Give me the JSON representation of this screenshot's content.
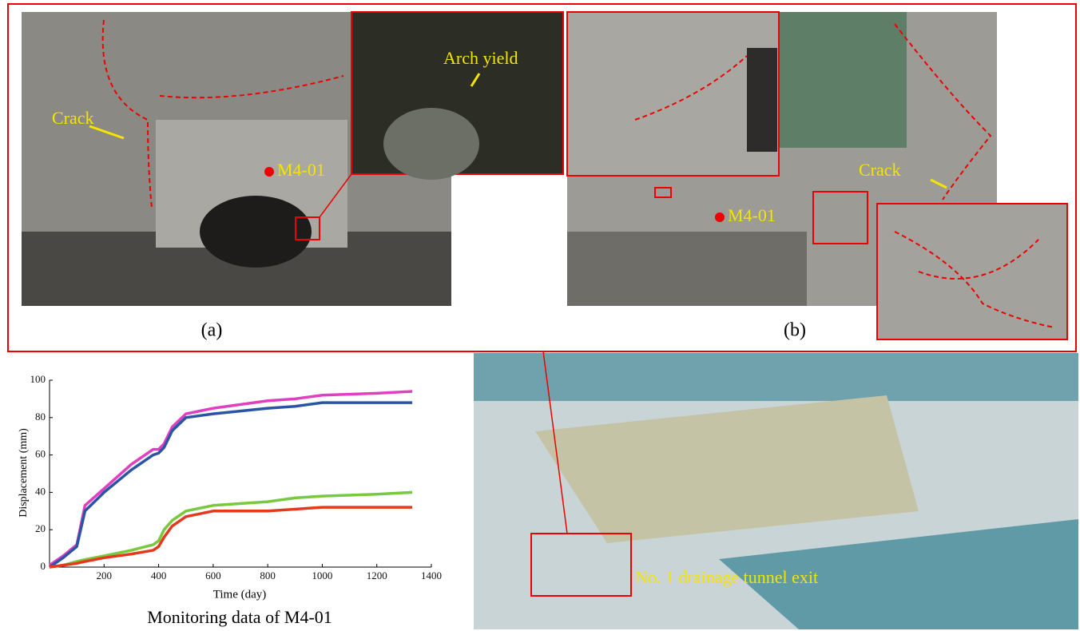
{
  "chart_data": {
    "type": "line",
    "title": "Monitoring data of M4-01",
    "x_label": "Time (day)",
    "y_label": "Displacement (mm)",
    "x": [
      0,
      50,
      100,
      130,
      200,
      300,
      380,
      400,
      420,
      450,
      500,
      600,
      800,
      900,
      1000,
      1200,
      1330
    ],
    "series": [
      {
        "color": "#e040c0",
        "values": [
          1,
          6,
          12,
          33,
          42,
          55,
          63,
          63,
          66,
          75,
          82,
          85,
          89,
          90,
          92,
          93,
          94
        ]
      },
      {
        "color": "#2a55a5",
        "values": [
          0,
          5,
          11,
          30,
          40,
          52,
          60,
          61,
          64,
          73,
          80,
          82,
          85,
          86,
          88,
          88,
          88
        ]
      },
      {
        "color": "#78c840",
        "values": [
          0,
          1,
          3,
          4,
          6,
          9,
          12,
          14,
          20,
          25,
          30,
          33,
          35,
          37,
          38,
          39,
          40
        ]
      },
      {
        "color": "#e5391f",
        "values": [
          0,
          1,
          2,
          3,
          5,
          7,
          9,
          11,
          16,
          22,
          27,
          30,
          30,
          31,
          32,
          32,
          32
        ]
      }
    ],
    "xlim": [
      0,
      1400
    ],
    "xticks": [
      200,
      400,
      600,
      800,
      1000,
      1200,
      1400
    ],
    "ylim": [
      0,
      100
    ],
    "yticks": [
      0,
      20,
      40,
      60,
      80,
      100
    ]
  },
  "figure": {
    "panel_a": {
      "label": "(a)",
      "crack": "Crack",
      "arch": "Arch yield",
      "point": "M4-01"
    },
    "panel_b": {
      "label": "(b)",
      "crack": "Crack",
      "point": "M4-01"
    },
    "model": {
      "annotation": "No. 1 drainage tunnel exit"
    }
  }
}
